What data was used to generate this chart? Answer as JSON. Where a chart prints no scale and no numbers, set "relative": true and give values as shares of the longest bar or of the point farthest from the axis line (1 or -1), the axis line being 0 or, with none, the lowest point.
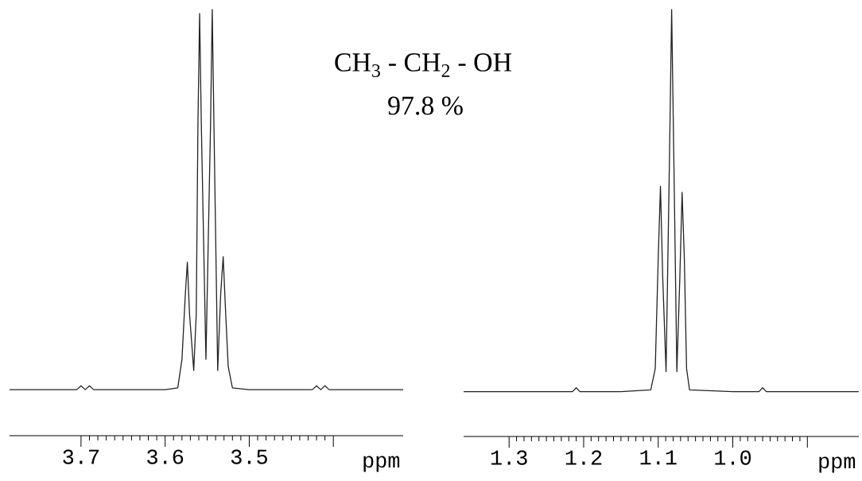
{
  "chart_data": [
    {
      "type": "line",
      "title": "CH$_{3}$ - CH$_{2}$ - OH",
      "subtitle": "97.8 %",
      "xlabel": "ppm",
      "relative": true,
      "color": "#222222",
      "x": [
        3.785,
        3.705,
        3.7,
        3.695,
        3.69,
        3.685,
        3.6,
        3.585,
        3.58,
        3.576,
        3.5736,
        3.571,
        3.566,
        3.563,
        3.561,
        3.559,
        3.557,
        3.5515,
        3.546,
        3.544,
        3.542,
        3.5375,
        3.534,
        3.531,
        3.528,
        3.525,
        3.52,
        3.5,
        3.425,
        3.42,
        3.415,
        3.41,
        3.405,
        3.317
      ],
      "values": [
        0.108,
        0.108,
        0.117,
        0.108,
        0.117,
        0.108,
        0.108,
        0.112,
        0.179,
        0.331,
        0.407,
        0.286,
        0.153,
        0.286,
        0.732,
        0.991,
        0.732,
        0.179,
        0.732,
        1.0,
        0.732,
        0.153,
        0.331,
        0.42,
        0.286,
        0.162,
        0.112,
        0.108,
        0.108,
        0.117,
        0.108,
        0.117,
        0.108,
        0.108
      ],
      "xlim": [
        3.785,
        3.317
      ],
      "xticks": [
        3.7,
        3.6,
        3.5,
        {
          "value": 3.4,
          "label": null
        }
      ]
    },
    {
      "type": "line",
      "xlabel": "ppm",
      "relative": true,
      "color": "#222222",
      "x": [
        1.361,
        1.215,
        1.21,
        1.205,
        1.15,
        1.11,
        1.104,
        1.1,
        1.097,
        1.094,
        1.0895,
        1.085,
        1.082,
        1.079,
        1.075,
        1.071,
        1.068,
        1.065,
        1.062,
        1.058,
        1.0,
        0.965,
        0.96,
        0.955,
        0.831
      ],
      "values": [
        0.105,
        0.105,
        0.114,
        0.105,
        0.105,
        0.109,
        0.159,
        0.418,
        0.586,
        0.374,
        0.152,
        0.642,
        1.0,
        0.642,
        0.152,
        0.374,
        0.572,
        0.418,
        0.159,
        0.109,
        0.105,
        0.105,
        0.114,
        0.105,
        0.105
      ],
      "xlim": [
        1.361,
        0.831
      ],
      "xticks": [
        1.3,
        1.2,
        1.1,
        {
          "value": 1.0,
          "label": "1.0"
        },
        {
          "value": 0.9,
          "label": null
        }
      ]
    }
  ]
}
